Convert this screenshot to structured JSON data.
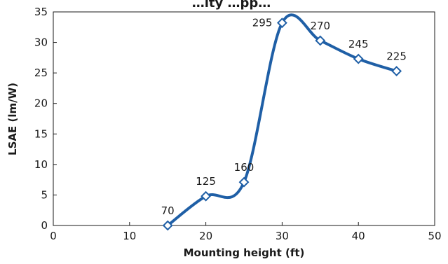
{
  "chart_data": {
    "type": "line",
    "title": "…ity …pp…",
    "xlabel": "Mounting height (ft)",
    "ylabel": "LSAE (lm/W)",
    "xlim": [
      0,
      50
    ],
    "ylim": [
      0,
      35
    ],
    "xticks": [
      "0",
      "10",
      "20",
      "30",
      "40",
      "50"
    ],
    "yticks": [
      "0",
      "5",
      "10",
      "15",
      "20",
      "25",
      "30",
      "35"
    ],
    "grid": false,
    "legend": "none",
    "line_color": "#1f5fa6",
    "marker": "diamond-open",
    "points": [
      {
        "x": 15,
        "y": 0,
        "label": "70"
      },
      {
        "x": 20,
        "y": 4.8,
        "label": "125"
      },
      {
        "x": 25,
        "y": 7.1,
        "label": "160"
      },
      {
        "x": 30,
        "y": 33.2,
        "label": "295"
      },
      {
        "x": 35,
        "y": 30.3,
        "label": "270"
      },
      {
        "x": 40,
        "y": 27.3,
        "label": "245"
      },
      {
        "x": 45,
        "y": 25.3,
        "label": "225"
      }
    ]
  }
}
